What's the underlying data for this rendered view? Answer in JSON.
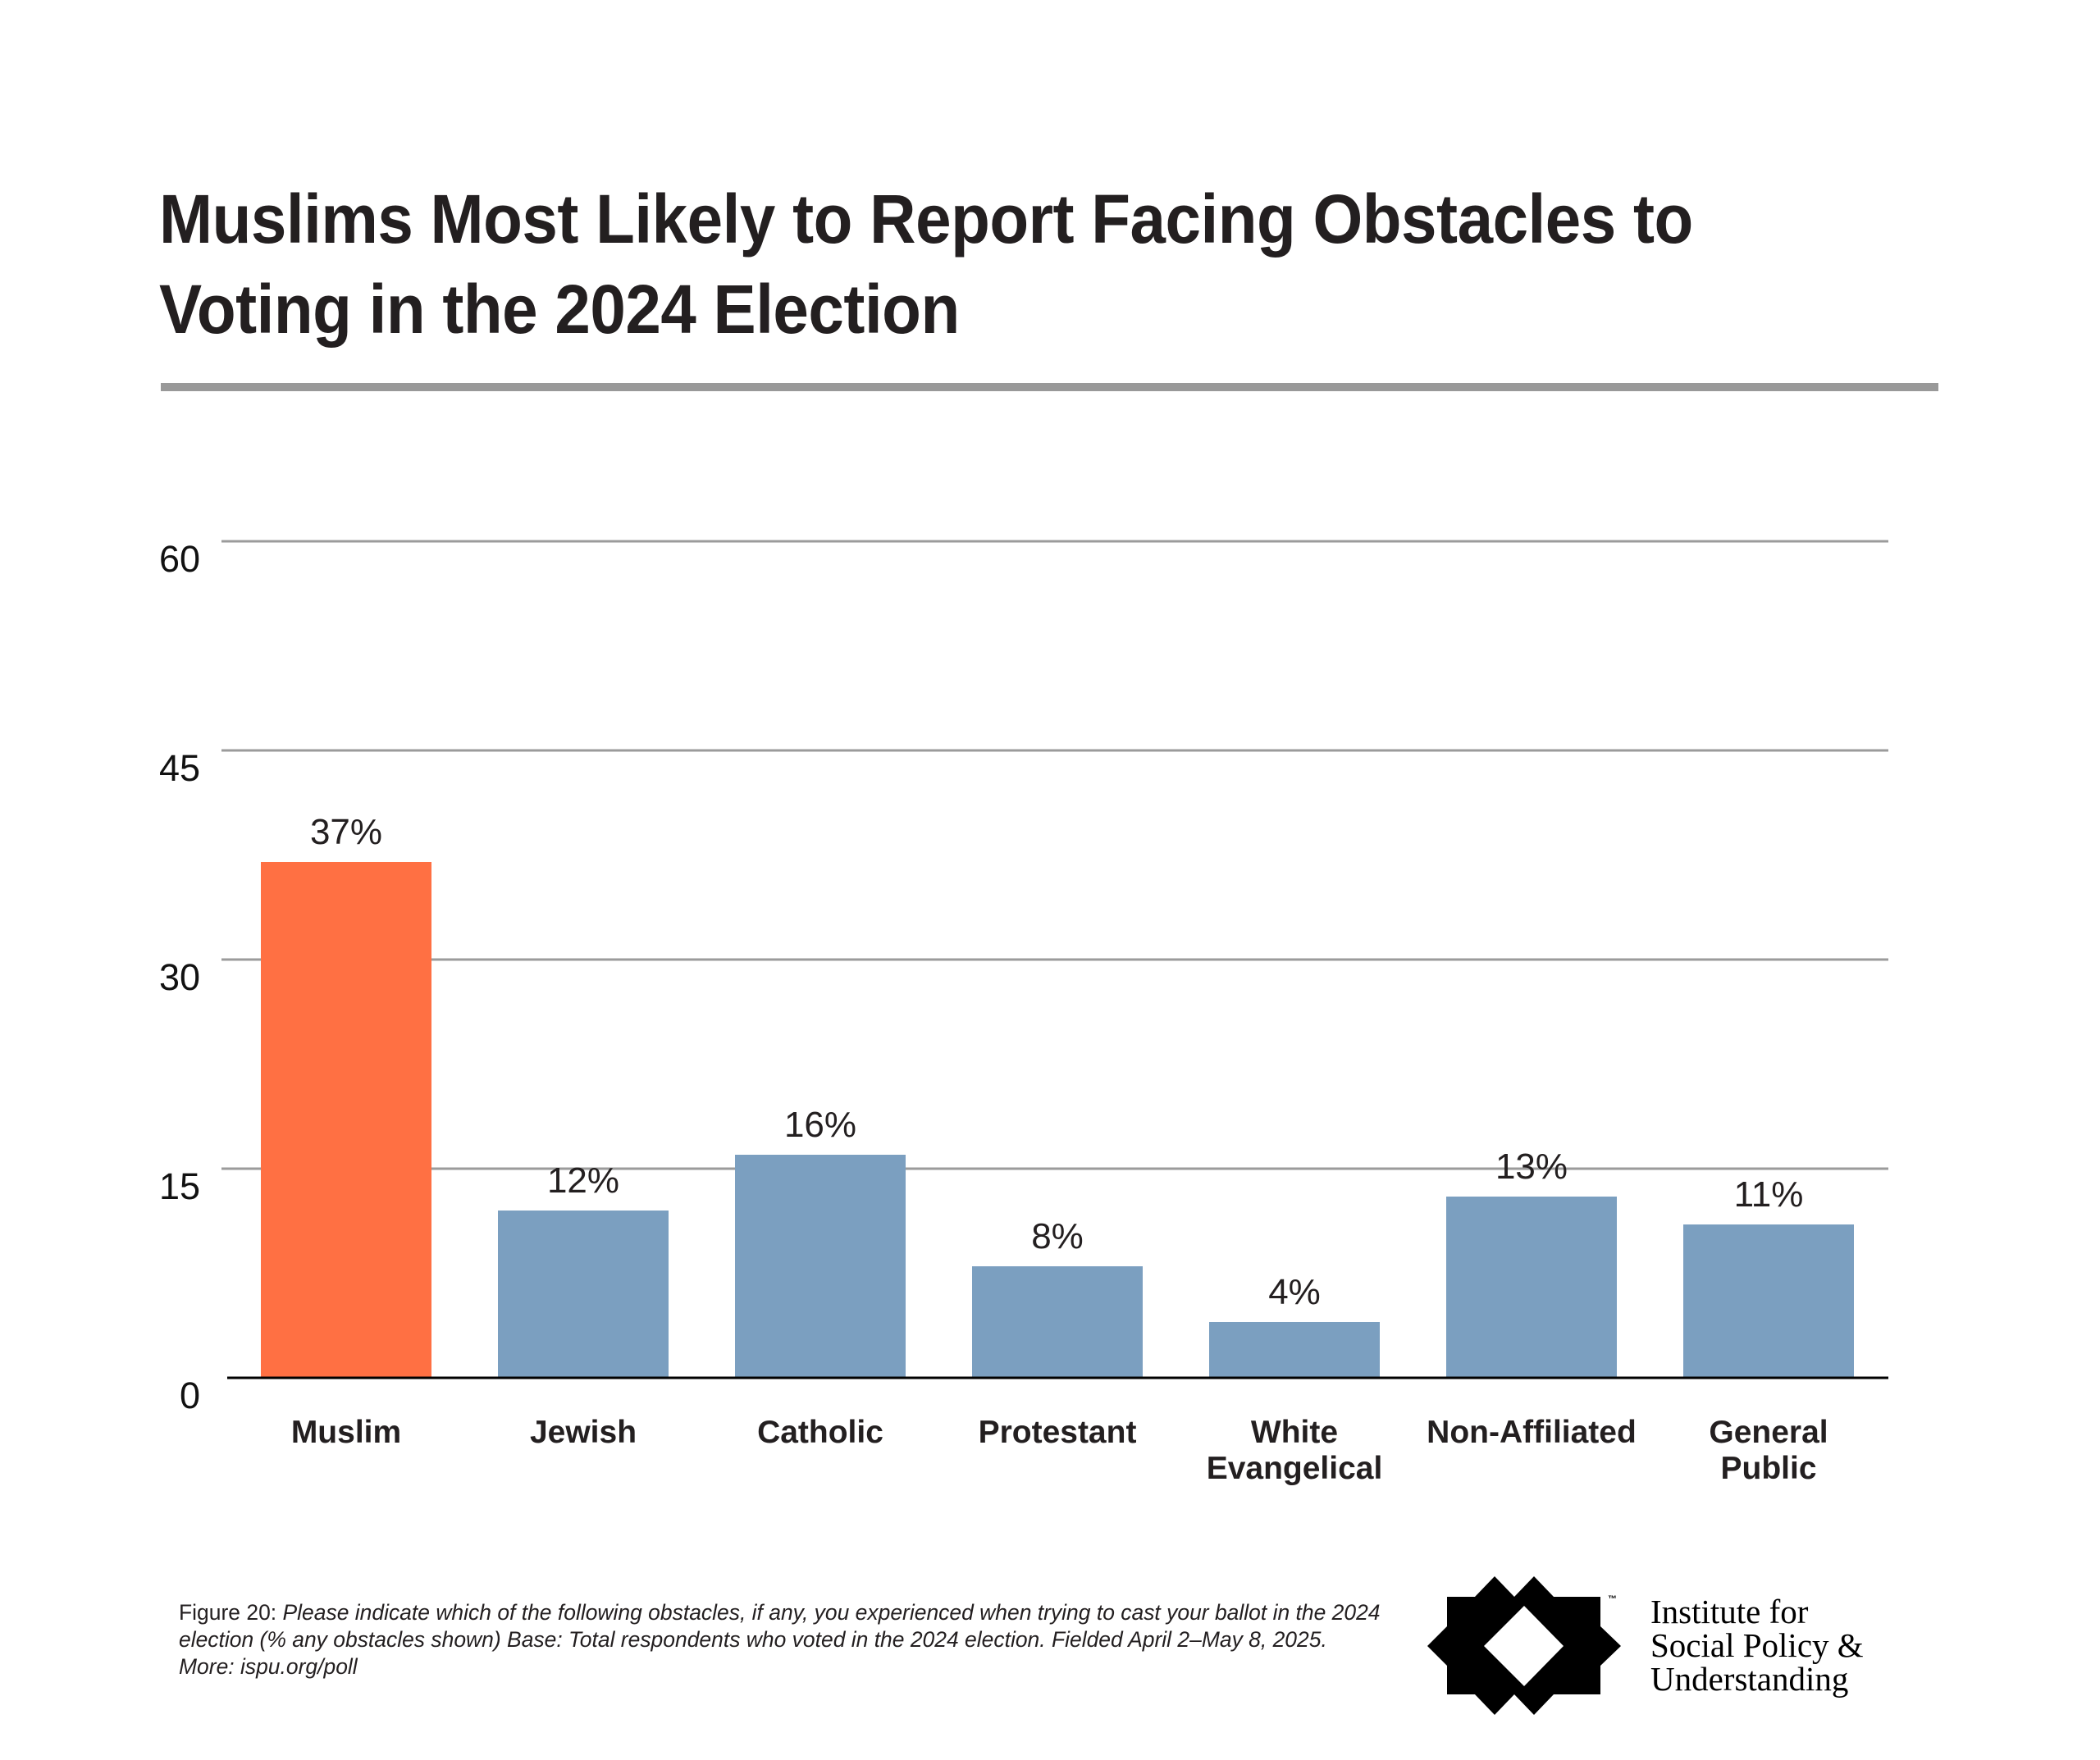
{
  "title_lines": [
    "Muslims Most Likely to Report Facing Obstacles to",
    "Voting in the 2024 Election"
  ],
  "colors": {
    "highlight_bar": "#FF7043",
    "default_bar": "#7B9FC0",
    "gridline": "#9B9B9B",
    "axis": "#000000",
    "title_rule": "#999999"
  },
  "chart_data": {
    "type": "bar",
    "title": "Muslims Most Likely to Report Facing Obstacles to Voting in the 2024 Election",
    "xlabel": "",
    "ylabel": "",
    "categories": [
      [
        "Muslim"
      ],
      [
        "Jewish"
      ],
      [
        "Catholic"
      ],
      [
        "Protestant"
      ],
      [
        "White",
        "Evangelical"
      ],
      [
        "Non-Affiliated"
      ],
      [
        "General",
        "Public"
      ]
    ],
    "category_names": [
      "Muslim",
      "Jewish",
      "Catholic",
      "Protestant",
      "White Evangelical",
      "Non-Affiliated",
      "General Public"
    ],
    "values": [
      37,
      12,
      16,
      8,
      4,
      13,
      11
    ],
    "data_labels": [
      "37%",
      "12%",
      "16%",
      "8%",
      "4%",
      "13%",
      "11%"
    ],
    "highlight_index": 0,
    "ylim": [
      0,
      60
    ],
    "yticks": [
      0,
      15,
      30,
      45,
      60
    ],
    "ytick_labels": [
      "0",
      "15",
      "30",
      "45",
      "60"
    ],
    "grid": true,
    "legend": "none"
  },
  "footnote": {
    "figure_label": "Figure 20",
    "separator": ": ",
    "text": "Please indicate which of the following obstacles, if any, you experienced when trying to cast your ballot in the 2024 election (% any obstacles shown) Base: Total respondents who voted in the 2024 election. Fielded April 2–May 8, 2025. More: ispu.org/poll"
  },
  "logo": {
    "icon": "ispu-star-logo-icon",
    "trademark": "™",
    "lines": [
      "Institute for",
      "Social Policy &",
      "Understanding"
    ]
  }
}
